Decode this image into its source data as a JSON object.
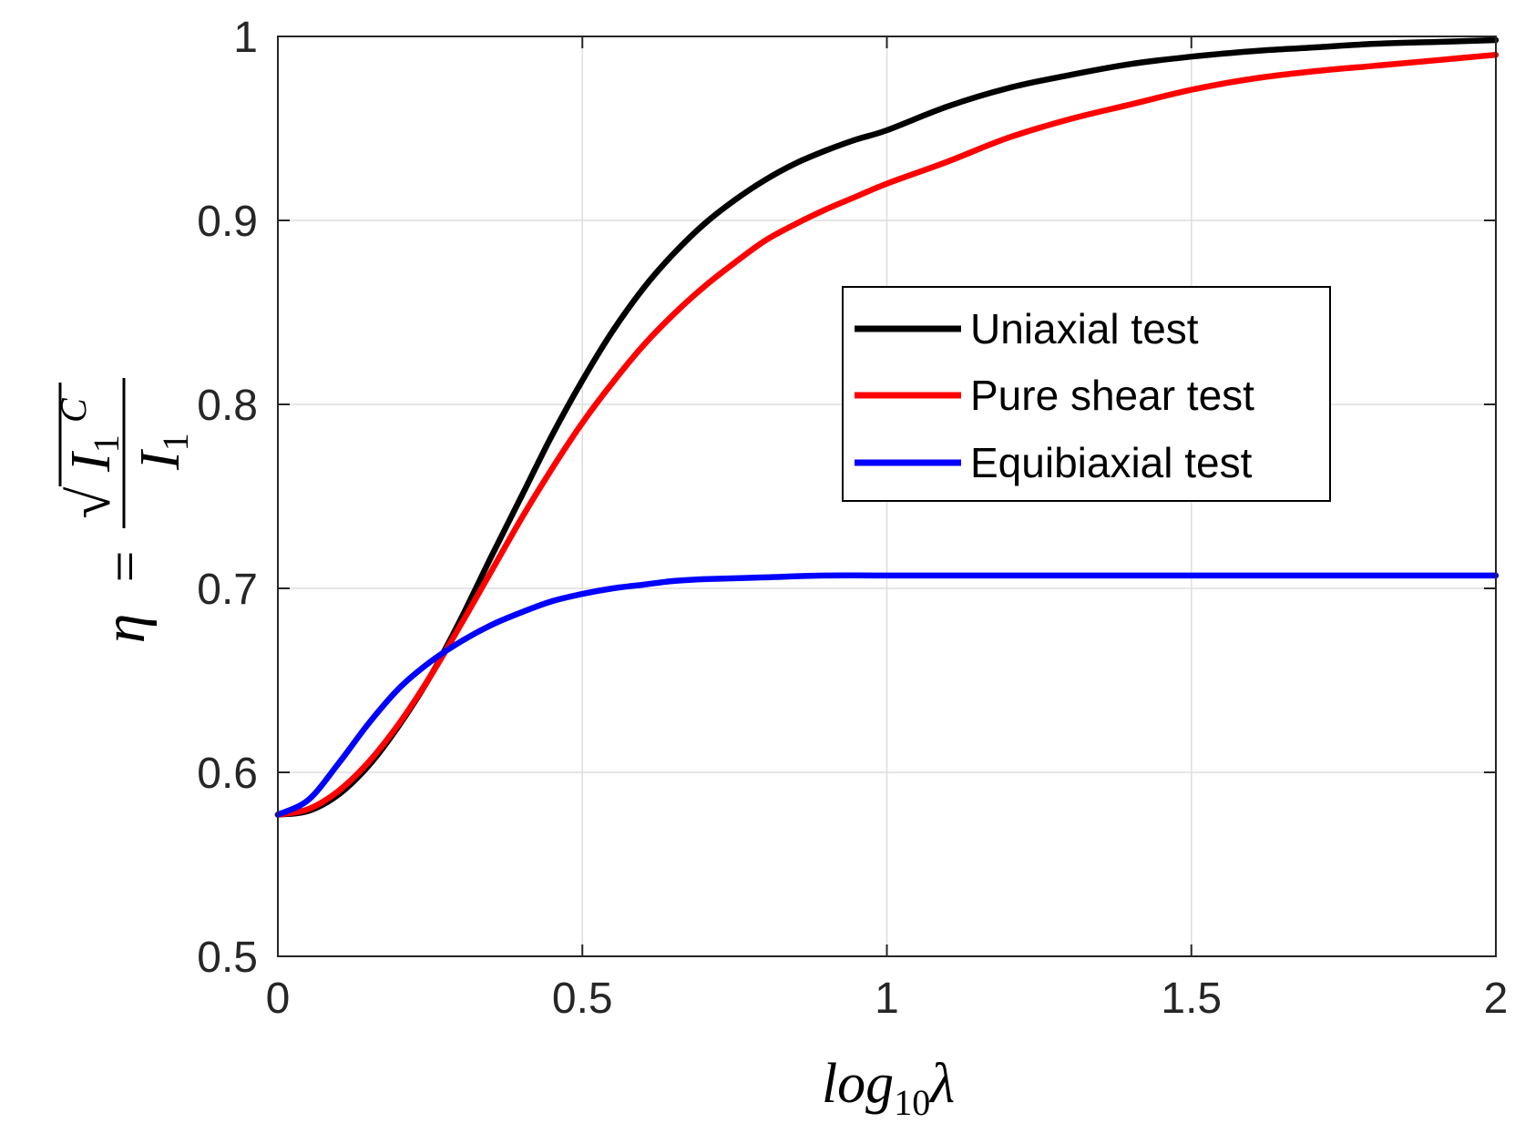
{
  "chart_data": {
    "type": "line",
    "xlabel": {
      "base": "log",
      "sub": "10",
      "var": "λ"
    },
    "ylabel": {
      "eta": "η",
      "equals": "=",
      "numerator": "I",
      "numerator_sub": "1",
      "numerator_sup": "C",
      "denominator": "I",
      "denominator_sub": "1"
    },
    "xlim": [
      0,
      2
    ],
    "ylim": [
      0.5,
      1
    ],
    "xticks": [
      0,
      0.5,
      1,
      1.5,
      2
    ],
    "xtick_labels": [
      "0",
      "0.5",
      "1",
      "1.5",
      "2"
    ],
    "yticks": [
      0.5,
      0.6,
      0.7,
      0.8,
      0.9,
      1
    ],
    "ytick_labels": [
      "0.5",
      "0.6",
      "0.7",
      "0.8",
      "0.9",
      "1"
    ],
    "grid": true,
    "legend_position": "upper-right inside",
    "series": [
      {
        "name": "Uniaxial test",
        "color": "#000000",
        "x": [
          0,
          0.05,
          0.1,
          0.15,
          0.2,
          0.25,
          0.3,
          0.35,
          0.4,
          0.45,
          0.5,
          0.55,
          0.6,
          0.65,
          0.7,
          0.75,
          0.8,
          0.85,
          0.9,
          0.95,
          1.0,
          1.1,
          1.2,
          1.3,
          1.4,
          1.5,
          1.6,
          1.7,
          1.8,
          1.9,
          2.0
        ],
        "y": [
          0.577,
          0.579,
          0.588,
          0.604,
          0.626,
          0.652,
          0.683,
          0.717,
          0.75,
          0.783,
          0.813,
          0.84,
          0.863,
          0.882,
          0.898,
          0.911,
          0.922,
          0.931,
          0.938,
          0.944,
          0.949,
          0.962,
          0.972,
          0.979,
          0.985,
          0.989,
          0.992,
          0.994,
          0.996,
          0.997,
          0.998
        ]
      },
      {
        "name": "Pure shear test",
        "color": "#ff0000",
        "x": [
          0,
          0.05,
          0.1,
          0.15,
          0.2,
          0.25,
          0.3,
          0.35,
          0.4,
          0.45,
          0.5,
          0.55,
          0.6,
          0.65,
          0.7,
          0.75,
          0.8,
          0.85,
          0.9,
          0.95,
          1.0,
          1.1,
          1.2,
          1.3,
          1.4,
          1.5,
          1.6,
          1.7,
          1.8,
          1.9,
          2.0
        ],
        "y": [
          0.577,
          0.58,
          0.59,
          0.606,
          0.627,
          0.652,
          0.68,
          0.709,
          0.738,
          0.765,
          0.79,
          0.812,
          0.832,
          0.849,
          0.864,
          0.877,
          0.889,
          0.898,
          0.906,
          0.913,
          0.92,
          0.932,
          0.945,
          0.955,
          0.963,
          0.971,
          0.977,
          0.981,
          0.984,
          0.987,
          0.99
        ]
      },
      {
        "name": "Equibiaxial test",
        "color": "#0000ff",
        "x": [
          0,
          0.05,
          0.1,
          0.15,
          0.2,
          0.25,
          0.3,
          0.35,
          0.4,
          0.45,
          0.5,
          0.55,
          0.6,
          0.65,
          0.7,
          0.8,
          0.9,
          1.0,
          1.2,
          1.4,
          1.6,
          1.8,
          2.0
        ],
        "y": [
          0.577,
          0.585,
          0.605,
          0.627,
          0.646,
          0.66,
          0.671,
          0.68,
          0.687,
          0.693,
          0.697,
          0.7,
          0.702,
          0.704,
          0.705,
          0.706,
          0.707,
          0.707,
          0.707,
          0.707,
          0.707,
          0.707,
          0.707
        ]
      }
    ]
  }
}
